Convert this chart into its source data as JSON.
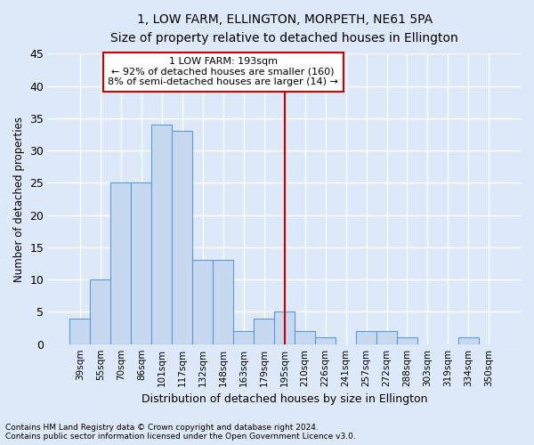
{
  "title": "1, LOW FARM, ELLINGTON, MORPETH, NE61 5PA",
  "subtitle": "Size of property relative to detached houses in Ellington",
  "xlabel": "Distribution of detached houses by size in Ellington",
  "ylabel": "Number of detached properties",
  "categories": [
    "39sqm",
    "55sqm",
    "70sqm",
    "86sqm",
    "101sqm",
    "117sqm",
    "132sqm",
    "148sqm",
    "163sqm",
    "179sqm",
    "195sqm",
    "210sqm",
    "226sqm",
    "241sqm",
    "257sqm",
    "272sqm",
    "288sqm",
    "303sqm",
    "319sqm",
    "334sqm",
    "350sqm"
  ],
  "values": [
    4,
    10,
    25,
    25,
    34,
    33,
    13,
    13,
    2,
    4,
    5,
    2,
    1,
    0,
    2,
    2,
    1,
    0,
    0,
    1,
    0
  ],
  "bar_color": "#c6d9f0",
  "bar_edge_color": "#5b9bd5",
  "marker_index": 10.0,
  "annotation_title": "1 LOW FARM: 193sqm",
  "annotation_line1": "← 92% of detached houses are smaller (160)",
  "annotation_line2": "8% of semi-detached houses are larger (14) →",
  "ylim": [
    0,
    45
  ],
  "yticks": [
    0,
    5,
    10,
    15,
    20,
    25,
    30,
    35,
    40,
    45
  ],
  "vline_color": "#cc0000",
  "annotation_box_color": "#cc0000",
  "footer1": "Contains HM Land Registry data © Crown copyright and database right 2024.",
  "footer2": "Contains public sector information licensed under the Open Government Licence v3.0.",
  "background_color": "#dde8f8",
  "plot_bg_color": "#dde8f8"
}
